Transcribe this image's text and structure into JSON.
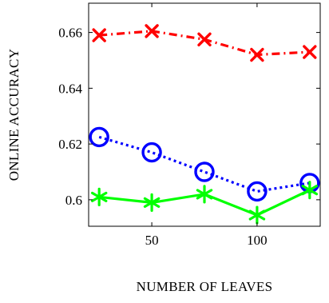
{
  "chart_data": {
    "type": "line",
    "title": "",
    "xlabel": "NUMBER OF LEAVES",
    "ylabel": "ONLINE ACCURACY",
    "xlim": [
      20,
      130
    ],
    "ylim": [
      0.5905,
      0.6705
    ],
    "x_ticks": [
      50,
      100
    ],
    "x_tick_labels": [
      "50",
      "100"
    ],
    "y_ticks": [
      0.6,
      0.62,
      0.64,
      0.66
    ],
    "y_tick_labels": [
      "0.6",
      "0.62",
      "0.64",
      "0.66"
    ],
    "grid": false,
    "legend": "none",
    "x": [
      25,
      50,
      75,
      100,
      125
    ],
    "series": [
      {
        "values": [
          0.659,
          0.6605,
          0.6575,
          0.652,
          0.653
        ],
        "color": "#ff0000",
        "line_style": "dash-dot",
        "marker": "x"
      },
      {
        "values": [
          0.6225,
          0.617,
          0.61,
          0.603,
          0.606
        ],
        "color": "#0000ff",
        "line_style": "dotted",
        "marker": "circle"
      },
      {
        "values": [
          0.601,
          0.599,
          0.602,
          0.5945,
          0.6035
        ],
        "color": "#00ff00",
        "line_style": "solid",
        "marker": "asterisk"
      }
    ]
  }
}
